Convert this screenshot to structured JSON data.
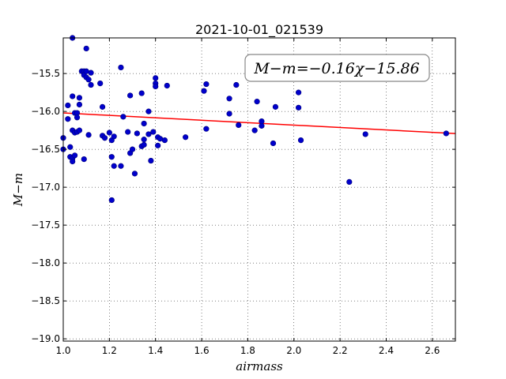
{
  "chart_data": {
    "type": "scatter",
    "title": "2021-10-01_021539",
    "xlabel": "airmass",
    "ylabel": "M−m",
    "annotation": "M−m=−0.16χ−15.86",
    "xlim": [
      1.0,
      2.7
    ],
    "ylim": [
      -19.03,
      -15.03
    ],
    "y_inverted_display": true,
    "xticks": [
      1.0,
      1.2,
      1.4,
      1.6,
      1.8,
      2.0,
      2.2,
      2.4,
      2.6
    ],
    "xtick_labels": [
      "1.0",
      "1.2",
      "1.4",
      "1.6",
      "1.8",
      "2.0",
      "2.2",
      "2.4",
      "2.6"
    ],
    "yticks": [
      -15.5,
      -16.0,
      -16.5,
      -17.0,
      -17.5,
      -18.0,
      -18.5,
      -19.0
    ],
    "ytick_labels": [
      "−15.5",
      "−16.0",
      "−16.5",
      "−17.0",
      "−17.5",
      "−18.0",
      "−18.5",
      "−19.0"
    ],
    "grid": true,
    "fit": {
      "slope": -0.16,
      "intercept": -15.86,
      "color": "#ff0000"
    },
    "point_color": "#0000cc",
    "points": [
      [
        1.04,
        -15.03
      ],
      [
        1.1,
        -15.17
      ],
      [
        1.0,
        -16.35
      ],
      [
        1.0,
        -16.5
      ],
      [
        1.02,
        -15.92
      ],
      [
        1.02,
        -16.1
      ],
      [
        1.03,
        -16.47
      ],
      [
        1.03,
        -16.6
      ],
      [
        1.04,
        -15.8
      ],
      [
        1.04,
        -16.25
      ],
      [
        1.04,
        -16.62
      ],
      [
        1.04,
        -16.66
      ],
      [
        1.05,
        -16.02
      ],
      [
        1.05,
        -16.28
      ],
      [
        1.05,
        -16.58
      ],
      [
        1.06,
        -16.02
      ],
      [
        1.06,
        -16.08
      ],
      [
        1.06,
        -16.27
      ],
      [
        1.07,
        -16.25
      ],
      [
        1.07,
        -15.82
      ],
      [
        1.07,
        -15.91
      ],
      [
        1.08,
        -15.47
      ],
      [
        1.09,
        -15.47
      ],
      [
        1.09,
        -15.52
      ],
      [
        1.09,
        -16.63
      ],
      [
        1.1,
        -15.55
      ],
      [
        1.1,
        -15.47
      ],
      [
        1.11,
        -16.31
      ],
      [
        1.11,
        -15.58
      ],
      [
        1.12,
        -15.49
      ],
      [
        1.12,
        -15.65
      ],
      [
        1.16,
        -15.63
      ],
      [
        1.17,
        -15.94
      ],
      [
        1.17,
        -16.32
      ],
      [
        1.18,
        -16.35
      ],
      [
        1.2,
        -16.28
      ],
      [
        1.21,
        -16.6
      ],
      [
        1.21,
        -16.38
      ],
      [
        1.21,
        -17.17
      ],
      [
        1.22,
        -16.33
      ],
      [
        1.22,
        -16.72
      ],
      [
        1.25,
        -15.42
      ],
      [
        1.25,
        -16.72
      ],
      [
        1.26,
        -16.07
      ],
      [
        1.28,
        -16.27
      ],
      [
        1.29,
        -16.55
      ],
      [
        1.29,
        -15.79
      ],
      [
        1.3,
        -16.5
      ],
      [
        1.31,
        -16.82
      ],
      [
        1.32,
        -16.29
      ],
      [
        1.34,
        -16.46
      ],
      [
        1.34,
        -15.76
      ],
      [
        1.35,
        -16.16
      ],
      [
        1.35,
        -16.37
      ],
      [
        1.35,
        -16.44
      ],
      [
        1.37,
        -16.0
      ],
      [
        1.37,
        -16.3
      ],
      [
        1.38,
        -16.65
      ],
      [
        1.39,
        -16.27
      ],
      [
        1.4,
        -15.56
      ],
      [
        1.4,
        -15.63
      ],
      [
        1.4,
        -15.67
      ],
      [
        1.41,
        -16.34
      ],
      [
        1.41,
        -16.45
      ],
      [
        1.42,
        -16.36
      ],
      [
        1.44,
        -16.38
      ],
      [
        1.45,
        -15.66
      ],
      [
        1.53,
        -16.34
      ],
      [
        1.61,
        -15.73
      ],
      [
        1.62,
        -15.64
      ],
      [
        1.62,
        -16.23
      ],
      [
        1.72,
        -15.83
      ],
      [
        1.72,
        -16.03
      ],
      [
        1.75,
        -15.65
      ],
      [
        1.76,
        -16.18
      ],
      [
        1.83,
        -16.25
      ],
      [
        1.84,
        -15.87
      ],
      [
        1.86,
        -16.19
      ],
      [
        1.86,
        -16.13
      ],
      [
        1.91,
        -16.42
      ],
      [
        1.92,
        -15.94
      ],
      [
        2.02,
        -15.75
      ],
      [
        2.02,
        -15.95
      ],
      [
        2.03,
        -16.38
      ],
      [
        2.24,
        -16.93
      ],
      [
        2.31,
        -16.3
      ],
      [
        2.66,
        -16.29
      ]
    ]
  }
}
